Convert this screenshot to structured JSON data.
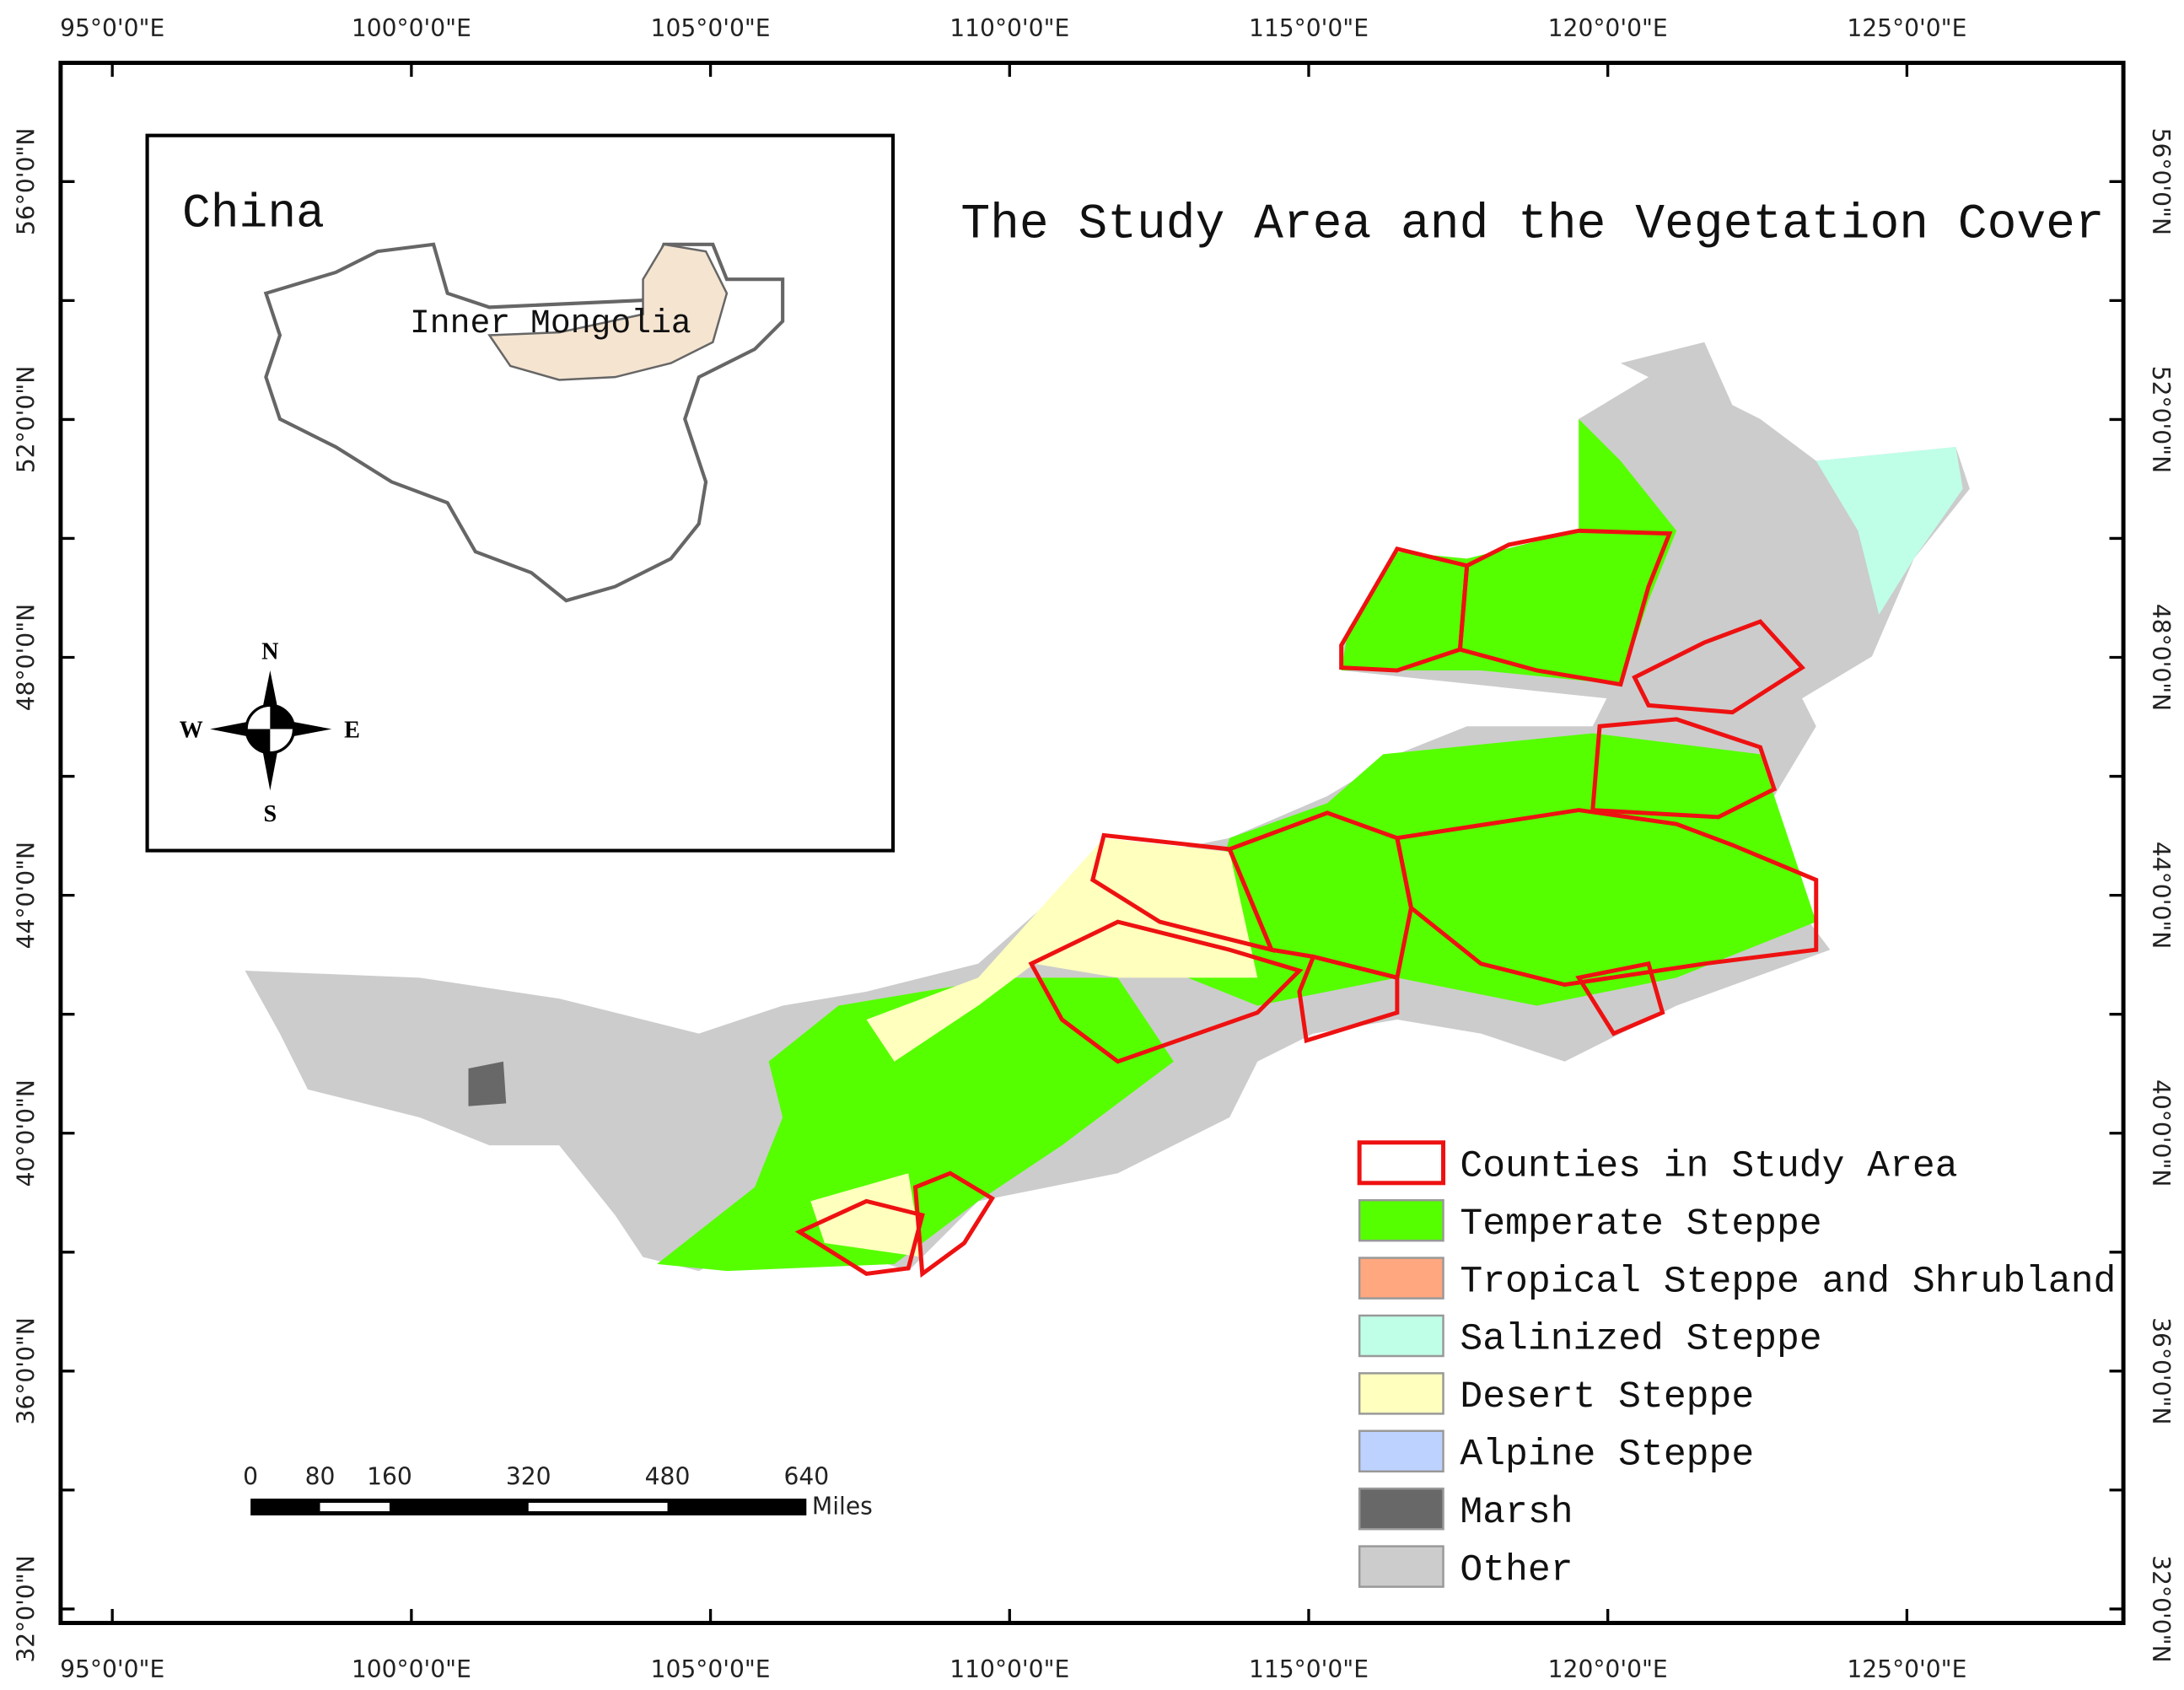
{
  "map": {
    "title": "The Study Area and the Vegetation Cover",
    "inset": {
      "title": "China",
      "region_label": "Inner Mongolia",
      "compass": {
        "north": "N",
        "south": "S",
        "east": "E",
        "west": "W"
      }
    },
    "lon_ticks": [
      {
        "value": 95,
        "label": "95°0'0\"E"
      },
      {
        "value": 100,
        "label": "100°0'0\"E"
      },
      {
        "value": 105,
        "label": "105°0'0\"E"
      },
      {
        "value": 110,
        "label": "110°0'0\"E"
      },
      {
        "value": 115,
        "label": "115°0'0\"E"
      },
      {
        "value": 120,
        "label": "120°0'0\"E"
      },
      {
        "value": 125,
        "label": "125°0'0\"E"
      }
    ],
    "lat_ticks": [
      {
        "value": 56,
        "label": "56°0'0\"N"
      },
      {
        "value": 52,
        "label": "52°0'0\"N"
      },
      {
        "value": 48,
        "label": "48°0'0\"N"
      },
      {
        "value": 44,
        "label": "44°0'0\"N"
      },
      {
        "value": 40,
        "label": "40°0'0\"N"
      },
      {
        "value": 36,
        "label": "36°0'0\"N"
      },
      {
        "value": 32,
        "label": "32°0'0\"N"
      }
    ],
    "scale_bar": {
      "ticks": [
        0,
        80,
        160,
        320,
        480,
        640
      ],
      "unit": "Miles"
    },
    "legend": [
      {
        "name": "Counties in Study Area",
        "color": "#ee1111",
        "outline": true
      },
      {
        "name": "Temperate Steppe",
        "color": "#55ff00"
      },
      {
        "name": "Tropical Steppe and Shrubland",
        "color": "#ffa77f"
      },
      {
        "name": "Salinized Steppe",
        "color": "#bfffe8"
      },
      {
        "name": "Desert Steppe",
        "color": "#ffffbe"
      },
      {
        "name": "Alpine Steppe",
        "color": "#bed2ff"
      },
      {
        "name": "Marsh",
        "color": "#686868"
      },
      {
        "name": "Other",
        "color": "#cccccc"
      }
    ]
  }
}
